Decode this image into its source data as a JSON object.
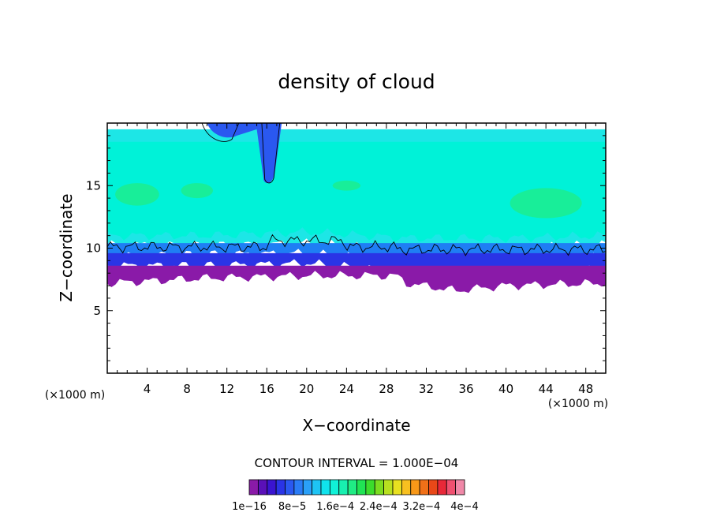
{
  "chart_data": {
    "type": "heatmap",
    "title": "density of cloud",
    "xlabel": "X−coordinate",
    "ylabel": "Z−coordinate",
    "x_unit": "(×1000 m)",
    "xlim": [
      0,
      50
    ],
    "ylim": [
      0,
      20
    ],
    "x_ticks": [
      4,
      8,
      12,
      16,
      20,
      24,
      28,
      32,
      36,
      40,
      44,
      48
    ],
    "y_ticks": [
      5,
      10,
      15
    ],
    "contour_interval_text": "CONTOUR INTERVAL = 1.000E−04",
    "colorbar_labels": [
      "1e−16",
      "8e−5",
      "1.6e−4",
      "2.4e−4",
      "3.2e−4",
      "4e−4"
    ],
    "colorbar_colors": [
      "#8a1aa8",
      "#5a10b8",
      "#3a14d0",
      "#2a34e6",
      "#2a58f0",
      "#2a7cf6",
      "#2aa0f8",
      "#1ec4f4",
      "#10e2ec",
      "#10f2d8",
      "#18f0b0",
      "#20ec84",
      "#20e454",
      "#3cdc2c",
      "#7cdc20",
      "#b8e020",
      "#e8e020",
      "#f8c020",
      "#f89818",
      "#f07018",
      "#e84818",
      "#e82838",
      "#f05070",
      "#f088a8"
    ],
    "layers": [
      {
        "name": "top cyan layer",
        "color": "#1de6e6",
        "z_top": 19.5,
        "base": [
          [
            0,
            10.3
          ],
          [
            10,
            10.2
          ],
          [
            20,
            10.4
          ],
          [
            30,
            9.9
          ],
          [
            40,
            10.0
          ],
          [
            50,
            10.3
          ]
        ]
      },
      {
        "name": "aqua core",
        "color": "#00f2d8",
        "z_top": 18.5,
        "base": [
          [
            0,
            11
          ],
          [
            10,
            11
          ],
          [
            20,
            11.3
          ],
          [
            30,
            10.8
          ],
          [
            40,
            10.8
          ],
          [
            50,
            11
          ]
        ]
      },
      {
        "name": "mid blue band",
        "color": "#1f7ef4",
        "z_top": 10.4,
        "base": [
          [
            0,
            9.4
          ],
          [
            10,
            9.5
          ],
          [
            20,
            9.6
          ],
          [
            30,
            8.9
          ],
          [
            40,
            9.0
          ],
          [
            50,
            9.3
          ]
        ]
      },
      {
        "name": "deep blue band",
        "color": "#2a34e6",
        "z_top": 9.6,
        "base": [
          [
            0,
            8.6
          ],
          [
            10,
            8.6
          ],
          [
            20,
            8.8
          ],
          [
            30,
            8.1
          ],
          [
            40,
            8.0
          ],
          [
            50,
            8.3
          ]
        ]
      },
      {
        "name": "violet base",
        "color": "#8a1aa8",
        "z_top": 8.6,
        "base": [
          [
            0,
            7.2
          ],
          [
            10,
            7.6
          ],
          [
            20,
            7.8
          ],
          [
            29,
            7.8
          ],
          [
            30,
            7.2
          ],
          [
            35,
            6.6
          ],
          [
            40,
            7.0
          ],
          [
            50,
            7.2
          ]
        ]
      }
    ]
  }
}
